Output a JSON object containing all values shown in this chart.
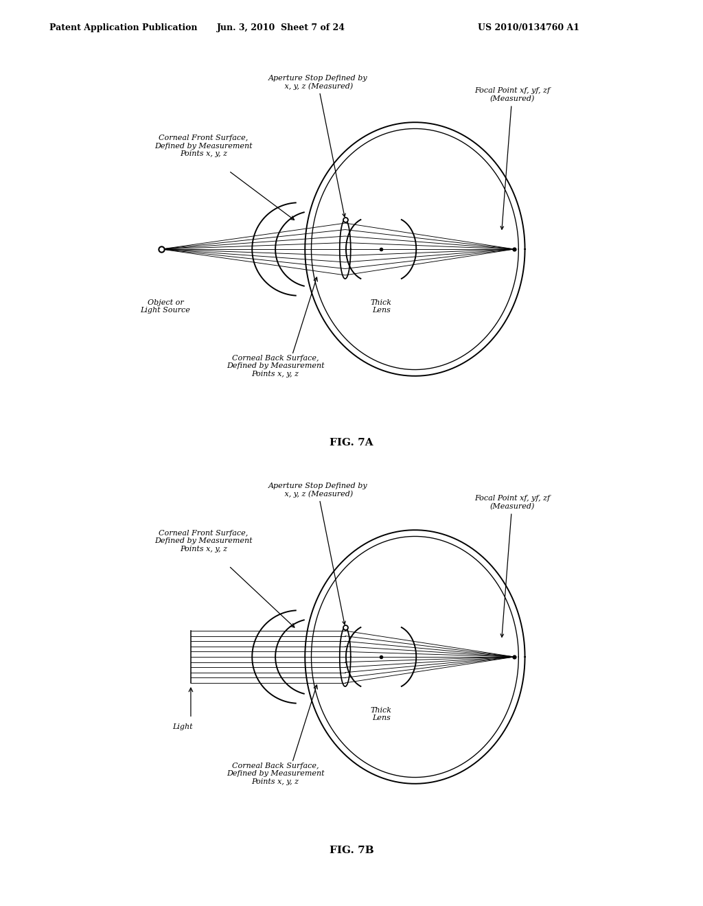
{
  "bg_color": "#ffffff",
  "header_left": "Patent Application Publication",
  "header_center": "Jun. 3, 2010  Sheet 7 of 24",
  "header_right": "US 2010/0134760 A1",
  "fig7a_label": "FIG. 7A",
  "fig7b_label": "FIG. 7B"
}
